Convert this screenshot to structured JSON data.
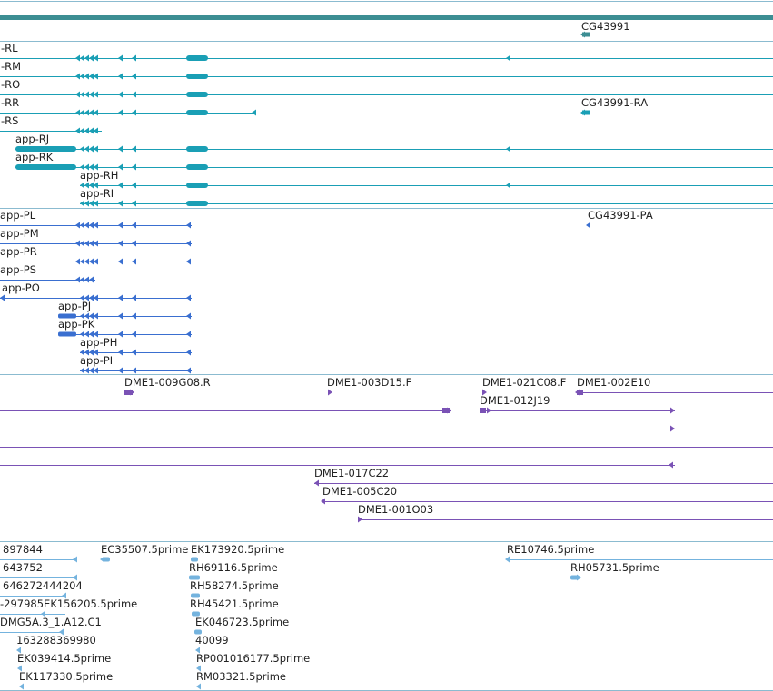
{
  "colors": {
    "background": "#ffffff",
    "divider": "#8bbbd0",
    "gene_bar": "#3c8e93",
    "transcript_rna": "#1a9fb5",
    "transcript_protein": "#3a6fd0",
    "cdna_clone": "#7a52b5",
    "est": "#74b3de",
    "label_text": "#222222"
  },
  "gene_track": {
    "labels": [
      {
        "id": "gene-label-cg43991",
        "text": "CG43991"
      }
    ]
  },
  "rna_track": {
    "labels": [
      {
        "id": "rna-label-rl",
        "text": "-RL"
      },
      {
        "id": "rna-label-rm",
        "text": "-RM"
      },
      {
        "id": "rna-label-ro",
        "text": "-RO"
      },
      {
        "id": "rna-label-rr",
        "text": "-RR"
      },
      {
        "id": "rna-label-cg43991-ra",
        "text": "CG43991-RA"
      },
      {
        "id": "rna-label-rs",
        "text": "-RS"
      },
      {
        "id": "rna-label-app-rj",
        "text": "app-RJ"
      },
      {
        "id": "rna-label-app-rk",
        "text": "app-RK"
      },
      {
        "id": "rna-label-app-rh",
        "text": "app-RH"
      },
      {
        "id": "rna-label-app-ri",
        "text": "app-RI"
      }
    ]
  },
  "protein_track": {
    "labels": [
      {
        "id": "protein-label-app-pl",
        "text": "app-PL"
      },
      {
        "id": "protein-label-cg43991-pa",
        "text": "CG43991-PA"
      },
      {
        "id": "protein-label-app-pm",
        "text": "app-PM"
      },
      {
        "id": "protein-label-app-pr",
        "text": "app-PR"
      },
      {
        "id": "protein-label-app-ps",
        "text": "app-PS"
      },
      {
        "id": "protein-label-app-po",
        "text": "app-PO"
      },
      {
        "id": "protein-label-app-pj",
        "text": "app-PJ"
      },
      {
        "id": "protein-label-app-pk",
        "text": "app-PK"
      },
      {
        "id": "protein-label-app-ph",
        "text": "app-PH"
      },
      {
        "id": "protein-label-app-pi",
        "text": "app-PI"
      }
    ]
  },
  "cdna_track": {
    "labels": [
      {
        "id": "clone-label-dme1-009g08-r",
        "text": "DME1-009G08.R"
      },
      {
        "id": "clone-label-dme1-003d15-f",
        "text": "DME1-003D15.F"
      },
      {
        "id": "clone-label-dme1-021c08-f",
        "text": "DME1-021C08.F"
      },
      {
        "id": "clone-label-dme1-002e10",
        "text": "DME1-002E10"
      },
      {
        "id": "clone-label-dme1-012j19",
        "text": "DME1-012J19"
      },
      {
        "id": "clone-label-dme1-017c22",
        "text": "DME1-017C22"
      },
      {
        "id": "clone-label-dme1-005c20",
        "text": "DME1-005C20"
      },
      {
        "id": "clone-label-dme1-001o03",
        "text": "DME1-001O03"
      }
    ]
  },
  "est_track": {
    "labels": [
      {
        "id": "est-label-897844",
        "text": "897844"
      },
      {
        "id": "est-label-ec35507",
        "text": "EC35507.5prime"
      },
      {
        "id": "est-label-ek173920",
        "text": "EK173920.5prime"
      },
      {
        "id": "est-label-re10746",
        "text": "RE10746.5prime"
      },
      {
        "id": "est-label-643752",
        "text": "643752"
      },
      {
        "id": "est-label-rh69116",
        "text": "RH69116.5prime"
      },
      {
        "id": "est-label-rh05731",
        "text": "RH05731.5prime"
      },
      {
        "id": "est-label-646272444204",
        "text": "646272444204"
      },
      {
        "id": "est-label-rh58274",
        "text": "RH58274.5prime"
      },
      {
        "id": "est-label-297985ek156205",
        "text": "-297985EK156205.5prime"
      },
      {
        "id": "est-label-rh45421",
        "text": "RH45421.5prime"
      },
      {
        "id": "est-label-dmg5a",
        "text": "DMG5A.3_1.A12.C1"
      },
      {
        "id": "est-label-ek046723",
        "text": "EK046723.5prime"
      },
      {
        "id": "est-label-163288369980",
        "text": "163288369980"
      },
      {
        "id": "est-label-40099",
        "text": "40099"
      },
      {
        "id": "est-label-ek039414",
        "text": "EK039414.5prime"
      },
      {
        "id": "est-label-rp001016177",
        "text": "RP001016177.5prime"
      },
      {
        "id": "est-label-ek117330",
        "text": "EK117330.5prime"
      },
      {
        "id": "est-label-rm03321",
        "text": "RM03321.5prime"
      }
    ]
  }
}
